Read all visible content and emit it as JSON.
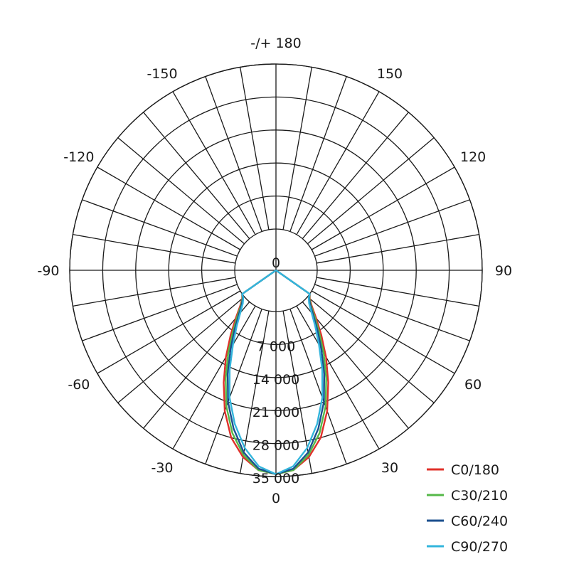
{
  "chart_data": {
    "type": "polar",
    "angle_labels": [
      {
        "angle": 180,
        "text": "-/+ 180"
      },
      {
        "angle": 150,
        "text": "150"
      },
      {
        "angle": -150,
        "text": "-150"
      },
      {
        "angle": 120,
        "text": "120"
      },
      {
        "angle": -120,
        "text": "-120"
      },
      {
        "angle": 90,
        "text": "90"
      },
      {
        "angle": -90,
        "text": "-90"
      },
      {
        "angle": 60,
        "text": "60"
      },
      {
        "angle": -60,
        "text": "-60"
      },
      {
        "angle": 30,
        "text": "30"
      },
      {
        "angle": -30,
        "text": "-30"
      },
      {
        "angle": 0,
        "text": "0"
      }
    ],
    "radial_ticks": [
      {
        "value": 0,
        "text": "0"
      },
      {
        "value": 7000,
        "text": "7 000"
      },
      {
        "value": 14000,
        "text": "14 000"
      },
      {
        "value": 21000,
        "text": "21 000"
      },
      {
        "value": 28000,
        "text": "28 000"
      },
      {
        "value": 35000,
        "text": "35 000"
      }
    ],
    "rmax": 35000,
    "angle_grid_step": 10,
    "grid": true,
    "legend_position": "bottom-right",
    "series": [
      {
        "name": "C0/180",
        "color": "#e0302a",
        "angles": [
          0,
          5,
          10,
          15,
          20,
          25,
          30,
          35,
          40,
          45,
          50,
          55
        ],
        "values": [
          34500,
          33800,
          31500,
          28000,
          23000,
          17500,
          12500,
          8000,
          4500,
          2000,
          600,
          0
        ]
      },
      {
        "name": "C30/210",
        "color": "#55b848",
        "angles": [
          0,
          5,
          10,
          15,
          20,
          25,
          30,
          35,
          40,
          45,
          50,
          55
        ],
        "values": [
          34500,
          33800,
          31000,
          27000,
          22000,
          16500,
          11500,
          7200,
          4000,
          1700,
          500,
          0
        ]
      },
      {
        "name": "C60/240",
        "color": "#1b4f8e",
        "angles": [
          0,
          5,
          10,
          15,
          20,
          25,
          30,
          35,
          40,
          45,
          50,
          55
        ],
        "values": [
          34500,
          33500,
          30500,
          26000,
          21000,
          15500,
          10500,
          6500,
          3500,
          1500,
          400,
          0
        ]
      },
      {
        "name": "C90/270",
        "color": "#33b5dc",
        "angles": [
          0,
          5,
          10,
          15,
          20,
          25,
          30,
          35,
          40,
          45,
          50,
          55
        ],
        "values": [
          34500,
          33000,
          29500,
          25000,
          20000,
          14500,
          9500,
          5800,
          3000,
          1200,
          300,
          0
        ]
      }
    ]
  }
}
